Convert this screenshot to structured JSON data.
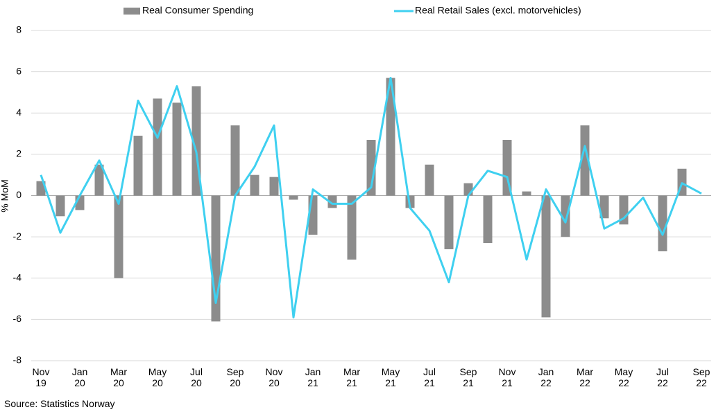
{
  "chart_data": {
    "type": "bar_line",
    "y_label": "% MoM",
    "source": "Source: Statistics Norway",
    "categories": [
      "Nov\n19",
      null,
      "Jan\n20",
      null,
      "Mar\n20",
      null,
      "May\n20",
      null,
      "Jul\n20",
      null,
      "Sep\n20",
      null,
      "Nov\n20",
      null,
      "Jan\n21",
      null,
      "Mar\n21",
      null,
      "May\n21",
      null,
      "Jul\n21",
      null,
      "Sep\n21",
      null,
      "Nov\n21",
      null,
      "Jan\n22",
      null,
      "Mar\n22",
      null,
      "May\n22",
      null,
      "Jul\n22",
      null,
      "Sep\n22"
    ],
    "series": [
      {
        "name": "Real Consumer Spending",
        "type": "bar",
        "color": "#8c8c8c",
        "values": [
          0.7,
          -1.0,
          -0.7,
          1.5,
          -4.0,
          2.9,
          4.7,
          4.5,
          5.3,
          -6.1,
          3.4,
          1.0,
          0.9,
          -0.2,
          -1.9,
          -0.6,
          -3.1,
          2.7,
          5.7,
          -0.6,
          1.5,
          -2.6,
          0.6,
          -2.3,
          2.7,
          0.2,
          -5.9,
          -2.0,
          3.4,
          -1.1,
          -1.4,
          null,
          -2.7,
          1.3,
          null
        ]
      },
      {
        "name": "Real Retail Sales (excl. motorvehicles)",
        "type": "line",
        "color": "#3fd0f0",
        "values": [
          1.0,
          -1.8,
          0.0,
          1.7,
          -0.4,
          4.6,
          2.8,
          5.3,
          2.1,
          -5.2,
          0.0,
          1.4,
          3.4,
          -5.9,
          0.3,
          -0.4,
          -0.4,
          0.4,
          5.7,
          -0.6,
          -1.7,
          -4.2,
          0.0,
          1.2,
          0.9,
          -3.1,
          0.3,
          -1.3,
          2.4,
          -1.6,
          -1.1,
          -0.1,
          -1.9,
          0.6,
          0.1
        ]
      }
    ],
    "ylim": [
      -8,
      8
    ],
    "yticks": [
      -8,
      -6,
      -4,
      -2,
      0,
      2,
      4,
      6,
      8
    ],
    "grid": true
  }
}
